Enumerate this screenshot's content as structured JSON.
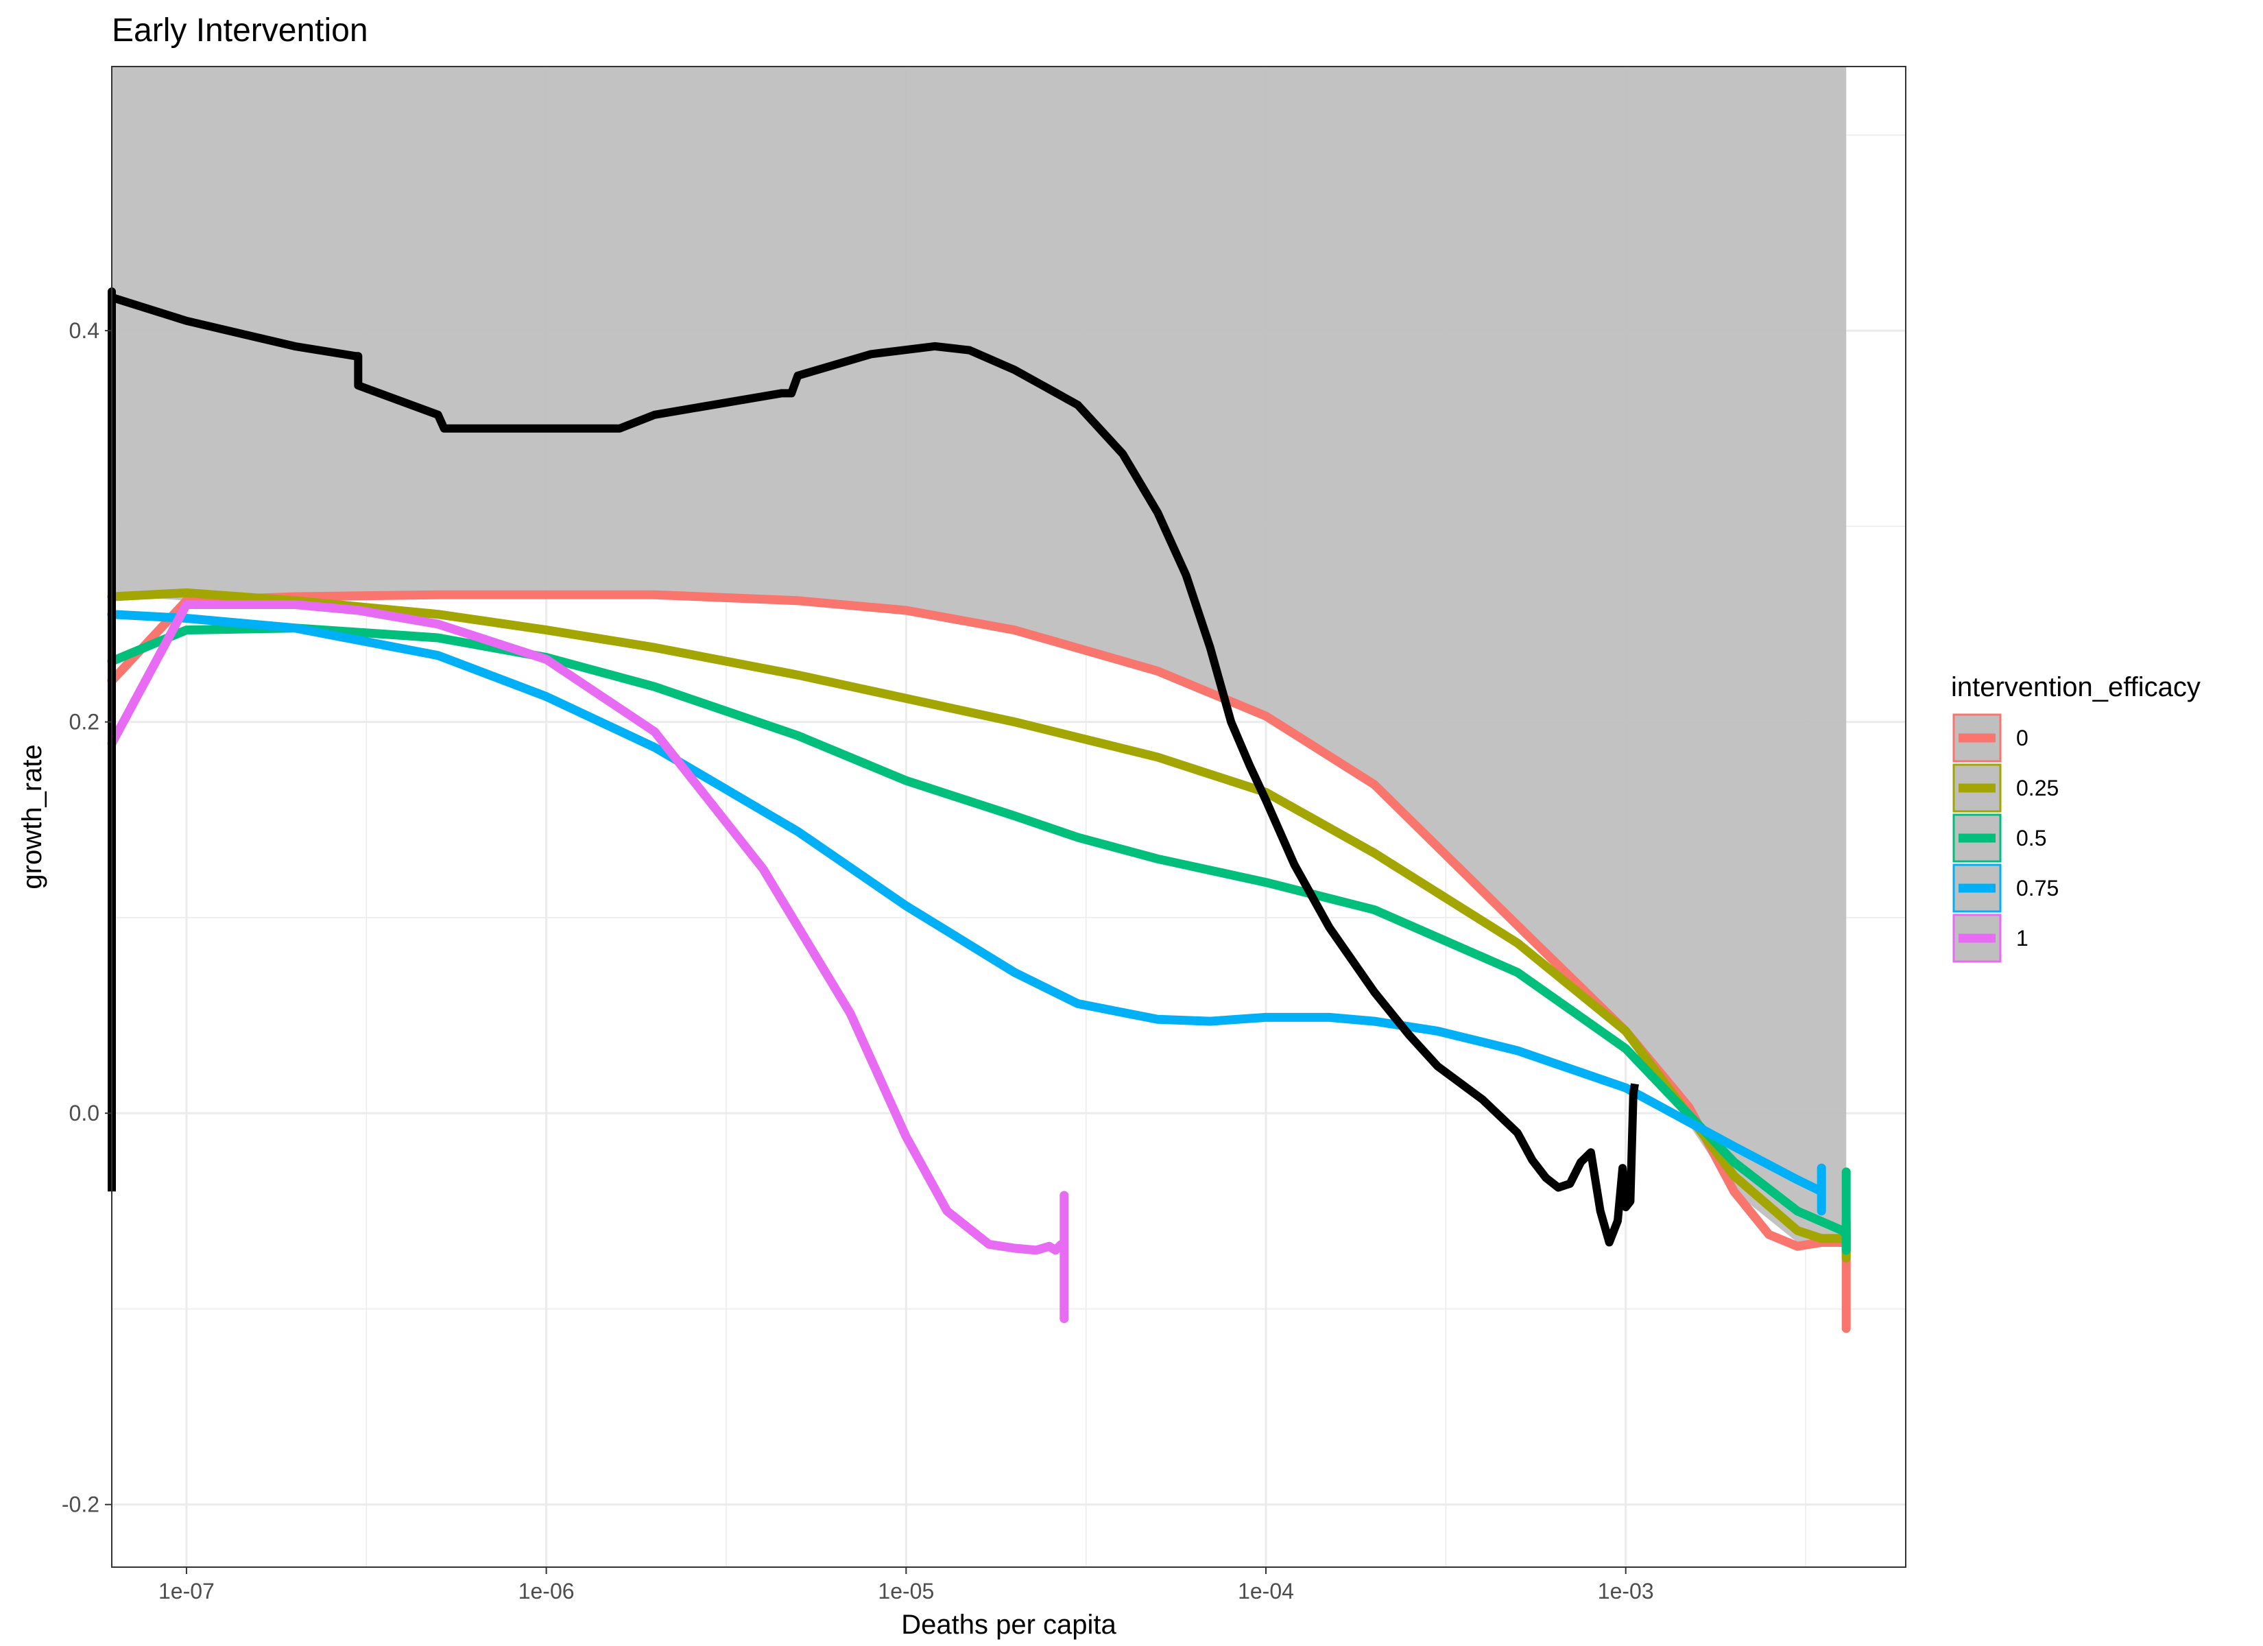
{
  "chart_data": {
    "type": "line",
    "title": "Early Intervention",
    "xlabel": "Deaths per capita",
    "ylabel": "growth_rate",
    "x_scale": "log10",
    "xlim": [
      6.2e-08,
      0.006
    ],
    "ylim": [
      -0.232,
      0.535
    ],
    "x_ticks": [
      {
        "value": 1e-07,
        "label": "1e-07"
      },
      {
        "value": 1e-06,
        "label": "1e-06"
      },
      {
        "value": 1e-05,
        "label": "1e-05"
      },
      {
        "value": 0.0001,
        "label": "1e-04"
      },
      {
        "value": 0.001,
        "label": "1e-03"
      }
    ],
    "y_ticks": [
      {
        "value": 0.4,
        "label": "0.4"
      },
      {
        "value": 0.2,
        "label": "0.2"
      },
      {
        "value": 0.0,
        "label": "0.0"
      },
      {
        "value": -0.2,
        "label": "-0.2"
      }
    ],
    "grid": true,
    "legend_title": "intervention_efficacy",
    "legend_position": "right",
    "shaded_region": {
      "color": "#bfbfbf",
      "upper": [
        [
          6.2e-08,
          0.535
        ],
        [
          0.0041,
          0.535
        ]
      ],
      "lower": [
        [
          6.2e-08,
          0.265
        ],
        [
          1e-07,
          0.262
        ],
        [
          2e-07,
          0.264
        ],
        [
          5e-07,
          0.265
        ],
        [
          1e-06,
          0.265
        ],
        [
          2e-06,
          0.265
        ],
        [
          5e-06,
          0.262
        ],
        [
          1e-05,
          0.257
        ],
        [
          2e-05,
          0.247
        ],
        [
          5e-05,
          0.226
        ],
        [
          0.0001,
          0.203
        ],
        [
          0.0002,
          0.168
        ],
        [
          0.0005,
          0.096
        ],
        [
          0.001,
          0.042
        ],
        [
          0.002,
          -0.04
        ],
        [
          0.003,
          -0.066
        ],
        [
          0.0041,
          -0.066
        ]
      ]
    },
    "series": [
      {
        "name": "0",
        "color": "#f8766d",
        "x": [
          6.2e-08,
          1e-07,
          2e-07,
          5e-07,
          1e-06,
          2e-06,
          5e-06,
          1e-05,
          2e-05,
          5e-05,
          0.0001,
          0.0002,
          0.0005,
          0.001,
          0.0015,
          0.002,
          0.0025,
          0.003,
          0.0035,
          0.0041,
          0.0041,
          0.0041
        ],
        "y": [
          0.221,
          0.262,
          0.264,
          0.265,
          0.265,
          0.265,
          0.262,
          0.257,
          0.247,
          0.226,
          0.203,
          0.168,
          0.096,
          0.042,
          0.003,
          -0.04,
          -0.062,
          -0.068,
          -0.066,
          -0.066,
          -0.11,
          -0.06
        ]
      },
      {
        "name": "0.25",
        "color": "#a3a500",
        "x": [
          6.2e-08,
          1e-07,
          2e-07,
          5e-07,
          1e-06,
          2e-06,
          5e-06,
          1e-05,
          2e-05,
          5e-05,
          0.0001,
          0.0002,
          0.0005,
          0.001,
          0.002,
          0.003,
          0.0035,
          0.0041,
          0.0041,
          0.0041
        ],
        "y": [
          0.264,
          0.266,
          0.262,
          0.255,
          0.247,
          0.238,
          0.224,
          0.212,
          0.2,
          0.182,
          0.164,
          0.133,
          0.087,
          0.042,
          -0.032,
          -0.06,
          -0.064,
          -0.064,
          -0.074,
          -0.055
        ]
      },
      {
        "name": "0.5",
        "color": "#00bf7d",
        "x": [
          6.2e-08,
          1e-07,
          2e-07,
          5e-07,
          1e-06,
          2e-06,
          5e-06,
          1e-05,
          2e-05,
          3e-05,
          5e-05,
          0.0001,
          0.0002,
          0.0005,
          0.001,
          0.002,
          0.003,
          0.004,
          0.0041,
          0.0041,
          0.0041
        ],
        "y": [
          0.231,
          0.247,
          0.248,
          0.243,
          0.233,
          0.218,
          0.193,
          0.17,
          0.152,
          0.141,
          0.13,
          0.118,
          0.104,
          0.072,
          0.033,
          -0.025,
          -0.05,
          -0.06,
          -0.062,
          -0.07,
          -0.03
        ]
      },
      {
        "name": "0.75",
        "color": "#00b0f6",
        "x": [
          6.2e-08,
          1e-07,
          2e-07,
          5e-07,
          1e-06,
          2e-06,
          5e-06,
          1e-05,
          2e-05,
          3e-05,
          5e-05,
          7e-05,
          0.0001,
          0.00015,
          0.0002,
          0.0003,
          0.0005,
          0.001,
          0.002,
          0.003,
          0.0035,
          0.0035,
          0.0035
        ],
        "y": [
          0.255,
          0.253,
          0.248,
          0.234,
          0.213,
          0.187,
          0.144,
          0.106,
          0.072,
          0.056,
          0.048,
          0.047,
          0.049,
          0.049,
          0.047,
          0.042,
          0.032,
          0.013,
          -0.017,
          -0.034,
          -0.04,
          -0.05,
          -0.028
        ]
      },
      {
        "name": "1",
        "color": "#e76bf3",
        "x": [
          6.2e-08,
          1e-07,
          2e-07,
          3e-07,
          5e-07,
          1e-06,
          2e-06,
          4e-06,
          7e-06,
          1e-05,
          1.3e-05,
          1.7e-05,
          2e-05,
          2.3e-05,
          2.5e-05,
          2.6e-05,
          2.7e-05,
          2.75e-05,
          2.75e-05,
          2.75e-05
        ],
        "y": [
          0.189,
          0.26,
          0.26,
          0.257,
          0.25,
          0.232,
          0.195,
          0.125,
          0.051,
          -0.012,
          -0.05,
          -0.067,
          -0.069,
          -0.07,
          -0.068,
          -0.07,
          -0.067,
          -0.068,
          -0.105,
          -0.042
        ]
      }
    ],
    "reference_line": {
      "color": "#000000",
      "x": [
        6.2e-08,
        6.2e-08,
        6.2e-08,
        1e-07,
        2e-07,
        2.95e-07,
        3e-07,
        3e-07,
        5e-07,
        5.2e-07,
        1e-06,
        1.6e-06,
        2e-06,
        4.5e-06,
        4.8e-06,
        5e-06,
        8e-06,
        1.2e-05,
        1.5e-05,
        2e-05,
        3e-05,
        4e-05,
        5e-05,
        6e-05,
        7e-05,
        8e-05,
        9e-05,
        0.0001,
        0.00012,
        0.00015,
        0.0002,
        0.00025,
        0.0003,
        0.0004,
        0.0005,
        0.00055,
        0.0006,
        0.00065,
        0.0007,
        0.00075,
        0.0008,
        0.00085,
        0.0009,
        0.00095,
        0.00098,
        0.001,
        0.00103,
        0.00105,
        0.00106
      ],
      "y": [
        -0.04,
        0.42,
        0.417,
        0.405,
        0.392,
        0.387,
        0.387,
        0.372,
        0.357,
        0.35,
        0.35,
        0.35,
        0.357,
        0.368,
        0.368,
        0.377,
        0.388,
        0.392,
        0.39,
        0.38,
        0.362,
        0.337,
        0.307,
        0.275,
        0.238,
        0.2,
        0.178,
        0.16,
        0.127,
        0.095,
        0.062,
        0.04,
        0.024,
        0.007,
        -0.01,
        -0.024,
        -0.033,
        -0.038,
        -0.036,
        -0.025,
        -0.02,
        -0.05,
        -0.066,
        -0.055,
        -0.028,
        -0.048,
        -0.045,
        0.01,
        0.015
      ]
    }
  }
}
